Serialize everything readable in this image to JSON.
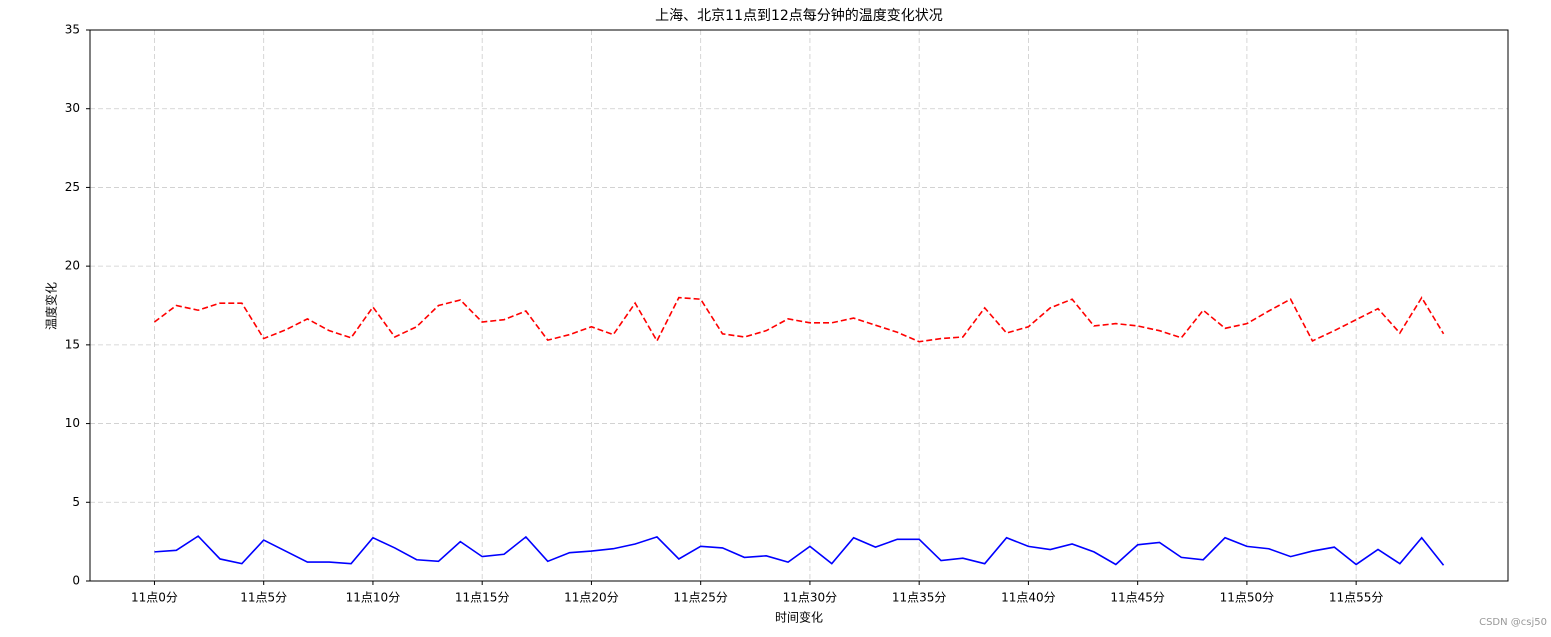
{
  "chart_data": {
    "type": "line",
    "title": "上海、北京11点到12点每分钟的温度变化状况",
    "xlabel": "时间变化",
    "ylabel": "温度变化",
    "watermark": "CSDN @csj50",
    "x": [
      0,
      1,
      2,
      3,
      4,
      5,
      6,
      7,
      8,
      9,
      10,
      11,
      12,
      13,
      14,
      15,
      16,
      17,
      18,
      19,
      20,
      21,
      22,
      23,
      24,
      25,
      26,
      27,
      28,
      29,
      30,
      31,
      32,
      33,
      34,
      35,
      36,
      37,
      38,
      39,
      40,
      41,
      42,
      43,
      44,
      45,
      46,
      47,
      48,
      49,
      50,
      51,
      52,
      53,
      54,
      55,
      56,
      57,
      58,
      59
    ],
    "series": [
      {
        "color": "#ff0000",
        "linestyle": "dashed",
        "values": [
          16.45,
          17.5,
          17.2,
          17.65,
          17.65,
          15.4,
          15.95,
          16.65,
          15.9,
          15.45,
          17.4,
          15.5,
          16.15,
          17.5,
          17.85,
          16.45,
          16.6,
          17.15,
          15.3,
          15.65,
          16.15,
          15.65,
          17.65,
          15.25,
          18.0,
          17.9,
          15.7,
          15.5,
          15.9,
          16.65,
          16.4,
          16.4,
          16.7,
          16.25,
          15.8,
          15.2,
          15.4,
          15.5,
          17.35,
          15.75,
          16.15,
          17.35,
          17.9,
          16.2,
          16.35,
          16.2,
          15.9,
          15.45,
          17.2,
          16.05,
          16.35,
          17.15,
          17.9,
          15.25,
          15.9,
          16.6,
          17.3,
          15.75,
          18.0,
          15.7
        ]
      },
      {
        "color": "#0000ff",
        "linestyle": "solid",
        "values": [
          1.85,
          1.95,
          2.85,
          1.4,
          1.1,
          2.6,
          1.9,
          1.2,
          1.2,
          1.1,
          2.75,
          2.1,
          1.35,
          1.25,
          2.5,
          1.55,
          1.7,
          2.8,
          1.25,
          1.8,
          1.9,
          2.05,
          2.35,
          2.8,
          1.4,
          2.2,
          2.1,
          1.5,
          1.6,
          1.2,
          2.2,
          1.1,
          2.75,
          2.15,
          2.65,
          2.65,
          1.3,
          1.45,
          1.1,
          2.75,
          2.2,
          2.0,
          2.35,
          1.85,
          1.05,
          2.3,
          2.45,
          1.5,
          1.35,
          2.75,
          2.2,
          2.05,
          1.55,
          1.9,
          2.15,
          1.05,
          2.0,
          1.1,
          2.75,
          1.0
        ]
      }
    ],
    "xlim": [
      -2.95,
      61.95
    ],
    "xticks": [
      {
        "value": 0,
        "label": "11点0分"
      },
      {
        "value": 5,
        "label": "11点5分"
      },
      {
        "value": 10,
        "label": "11点10分"
      },
      {
        "value": 15,
        "label": "11点15分"
      },
      {
        "value": 20,
        "label": "11点20分"
      },
      {
        "value": 25,
        "label": "11点25分"
      },
      {
        "value": 30,
        "label": "11点30分"
      },
      {
        "value": 35,
        "label": "11点35分"
      },
      {
        "value": 40,
        "label": "11点40分"
      },
      {
        "value": 45,
        "label": "11点45分"
      },
      {
        "value": 50,
        "label": "11点50分"
      },
      {
        "value": 55,
        "label": "11点55分"
      }
    ],
    "ylim": [
      0,
      35
    ],
    "yticks": [
      0,
      5,
      10,
      15,
      20,
      25,
      30,
      35
    ],
    "grid": true
  }
}
